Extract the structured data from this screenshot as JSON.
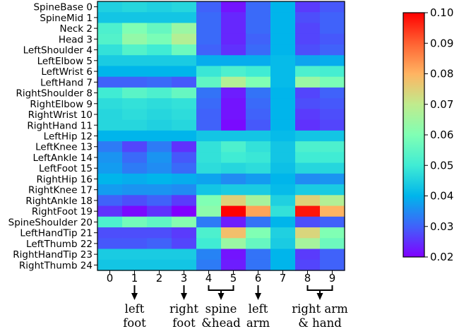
{
  "chart_data": {
    "type": "heatmap",
    "x": [
      "0",
      "1",
      "2",
      "3",
      "4",
      "5",
      "6",
      "7",
      "8",
      "9"
    ],
    "y": [
      "SpineBase 0",
      "SpineMid 1",
      "Neck 2",
      "Head 3",
      "LeftShoulder 4",
      "LeftElbow 5",
      "LeftWrist 6",
      "LeftHand 7",
      "RightShoulder 8",
      "RightElbow 9",
      "RightWrist 10",
      "RightHand 11",
      "LeftHip 12",
      "LeftKnee 13",
      "LeftAnkle 14",
      "LeftFoot 15",
      "RightHip 16",
      "RightKnee 17",
      "RightAnkle 18",
      "RightFoot 19",
      "SpineShoulder 20",
      "LeftHandTip 21",
      "LeftThumb 22",
      "RightHandTip 23",
      "RightThumb 24"
    ],
    "values": [
      [
        0.045,
        0.046,
        0.045,
        0.046,
        0.03,
        0.022,
        0.031,
        0.04,
        0.026,
        0.029
      ],
      [
        0.043,
        0.043,
        0.043,
        0.043,
        0.031,
        0.024,
        0.031,
        0.04,
        0.028,
        0.03
      ],
      [
        0.052,
        0.06,
        0.056,
        0.064,
        0.031,
        0.024,
        0.031,
        0.04,
        0.027,
        0.03
      ],
      [
        0.053,
        0.063,
        0.059,
        0.068,
        0.031,
        0.024,
        0.03,
        0.04,
        0.027,
        0.029
      ],
      [
        0.048,
        0.053,
        0.05,
        0.057,
        0.03,
        0.025,
        0.031,
        0.04,
        0.028,
        0.03
      ],
      [
        0.044,
        0.044,
        0.044,
        0.044,
        0.039,
        0.039,
        0.039,
        0.041,
        0.038,
        0.039
      ],
      [
        0.04,
        0.04,
        0.04,
        0.04,
        0.049,
        0.052,
        0.05,
        0.041,
        0.052,
        0.051
      ],
      [
        0.03,
        0.03,
        0.031,
        0.029,
        0.055,
        0.068,
        0.06,
        0.041,
        0.064,
        0.059
      ],
      [
        0.05,
        0.054,
        0.052,
        0.056,
        0.032,
        0.023,
        0.032,
        0.04,
        0.027,
        0.03
      ],
      [
        0.047,
        0.048,
        0.047,
        0.048,
        0.031,
        0.022,
        0.031,
        0.04,
        0.028,
        0.029
      ],
      [
        0.046,
        0.047,
        0.046,
        0.047,
        0.03,
        0.022,
        0.03,
        0.04,
        0.026,
        0.028
      ],
      [
        0.046,
        0.046,
        0.045,
        0.046,
        0.03,
        0.021,
        0.029,
        0.04,
        0.025,
        0.027
      ],
      [
        0.04,
        0.04,
        0.04,
        0.04,
        0.043,
        0.043,
        0.043,
        0.041,
        0.043,
        0.043
      ],
      [
        0.033,
        0.027,
        0.033,
        0.025,
        0.048,
        0.052,
        0.048,
        0.043,
        0.052,
        0.052
      ],
      [
        0.036,
        0.031,
        0.036,
        0.029,
        0.048,
        0.05,
        0.049,
        0.043,
        0.05,
        0.05
      ],
      [
        0.037,
        0.033,
        0.035,
        0.031,
        0.047,
        0.046,
        0.047,
        0.042,
        0.046,
        0.046
      ],
      [
        0.04,
        0.039,
        0.04,
        0.039,
        0.038,
        0.035,
        0.037,
        0.04,
        0.035,
        0.036
      ],
      [
        0.037,
        0.036,
        0.036,
        0.035,
        0.043,
        0.044,
        0.044,
        0.041,
        0.044,
        0.044
      ],
      [
        0.03,
        0.028,
        0.03,
        0.026,
        0.06,
        0.075,
        0.066,
        0.045,
        0.075,
        0.068
      ],
      [
        0.025,
        0.021,
        0.025,
        0.02,
        0.062,
        0.1,
        0.082,
        0.048,
        0.098,
        0.08
      ],
      [
        0.052,
        0.058,
        0.055,
        0.061,
        0.033,
        0.023,
        0.032,
        0.04,
        0.028,
        0.03
      ],
      [
        0.028,
        0.028,
        0.028,
        0.026,
        0.052,
        0.078,
        0.06,
        0.045,
        0.074,
        0.06
      ],
      [
        0.029,
        0.029,
        0.03,
        0.027,
        0.05,
        0.064,
        0.056,
        0.044,
        0.066,
        0.057
      ],
      [
        0.044,
        0.044,
        0.044,
        0.044,
        0.034,
        0.022,
        0.032,
        0.04,
        0.026,
        0.03
      ],
      [
        0.043,
        0.043,
        0.043,
        0.043,
        0.033,
        0.023,
        0.032,
        0.04,
        0.027,
        0.03
      ]
    ],
    "colorbar": {
      "min": 0.02,
      "max": 0.1,
      "ticks": [
        "0.02",
        "0.03",
        "0.04",
        "0.05",
        "0.06",
        "0.07",
        "0.08",
        "0.09",
        "0.10"
      ],
      "colormap": "rainbow"
    },
    "annotations": [
      {
        "columns": [
          "1"
        ],
        "bracket": false,
        "lines": [
          "left",
          "foot"
        ]
      },
      {
        "columns": [
          "3"
        ],
        "bracket": false,
        "lines": [
          "right",
          "foot"
        ]
      },
      {
        "columns": [
          "4",
          "5"
        ],
        "bracket": true,
        "lines": [
          "spine",
          "&head"
        ]
      },
      {
        "columns": [
          "6"
        ],
        "bracket": false,
        "lines": [
          "left",
          "arm"
        ]
      },
      {
        "columns": [
          "8",
          "9"
        ],
        "bracket": true,
        "lines": [
          "right arm",
          "& hand"
        ]
      }
    ]
  }
}
